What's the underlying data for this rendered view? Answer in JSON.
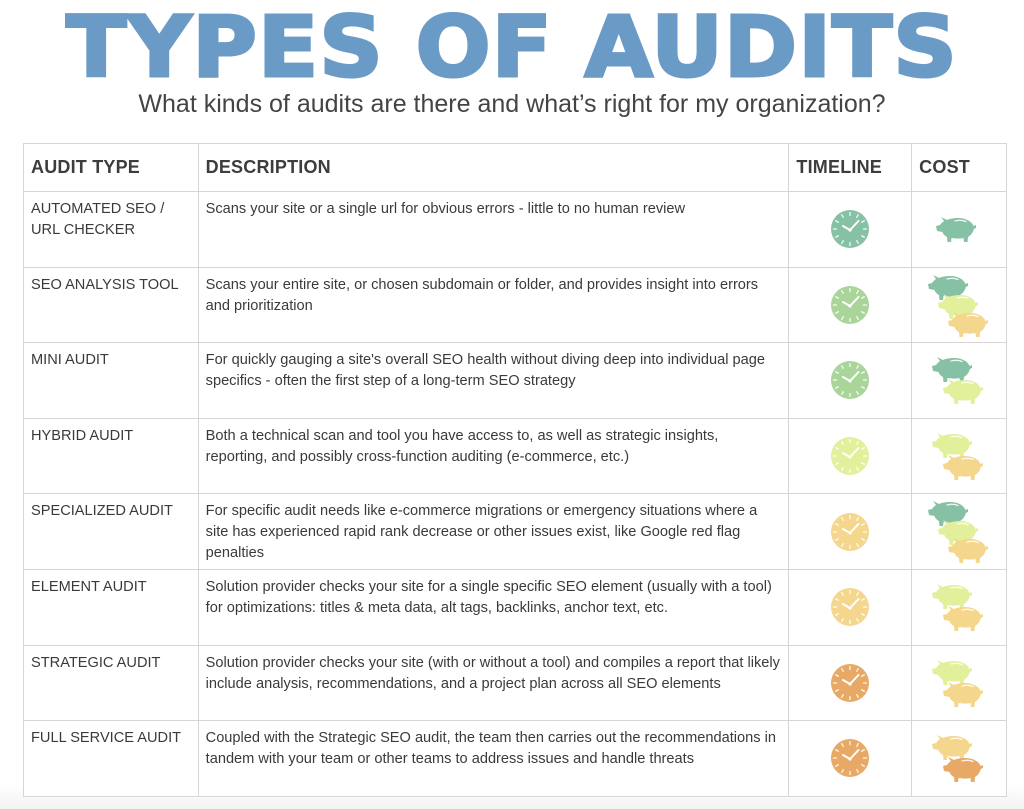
{
  "header": {
    "title": "TYPES OF AUDITS",
    "subtitle": "What kinds of audits are there and what’s right for my organization?"
  },
  "colors": {
    "title_blue": "#6a9bc7",
    "teal": "#86c1a5",
    "light_green": "#a9d49a",
    "lime": "#e2f09c",
    "yellow": "#f5d68d",
    "orange": "#e8a866",
    "border": "#d6d6d6",
    "text": "#3a3a3a"
  },
  "table": {
    "columns": [
      "AUDIT TYPE",
      "DESCRIPTION",
      "TIMELINE",
      "COST"
    ],
    "rows": [
      {
        "type": "AUTOMATED SEO / URL CHECKER",
        "description": "Scans your site or a single url for obvious errors - little to no human review",
        "timeline_icon": "clock-icon",
        "timeline_color": "#86c1a5",
        "cost_icons": [
          "#86c1a5"
        ]
      },
      {
        "type": "SEO ANALYSIS TOOL",
        "description": "Scans your entire site, or chosen subdomain or folder, and provides insight into errors and prioritization",
        "timeline_icon": "clock-icon",
        "timeline_color": "#a9d49a",
        "cost_icons": [
          "#86c1a5",
          "#e2f09c",
          "#f5d68d"
        ]
      },
      {
        "type": "MINI AUDIT",
        "description": "For quickly gauging a site's overall SEO health without diving deep into individual page specifics - often the first step of a long-term SEO strategy",
        "timeline_icon": "clock-icon",
        "timeline_color": "#a9d49a",
        "cost_icons": [
          "#86c1a5",
          "#e2f09c"
        ]
      },
      {
        "type": "HYBRID AUDIT",
        "description": "Both a technical scan and tool you have access to, as well as strategic insights, reporting, and possibly cross-function auditing (e-commerce, etc.)",
        "timeline_icon": "clock-icon",
        "timeline_color": "#e2f09c",
        "cost_icons": [
          "#e2f09c",
          "#f5d68d"
        ]
      },
      {
        "type": "SPECIALIZED AUDIT",
        "description": "For specific audit needs like e-commerce migrations or emergency situations where a site has experienced rapid rank decrease or other issues exist, like Google red flag penalties",
        "timeline_icon": "clock-icon",
        "timeline_color": "#f5d68d",
        "cost_icons": [
          "#86c1a5",
          "#e2f09c",
          "#f5d68d"
        ]
      },
      {
        "type": "ELEMENT AUDIT",
        "description": "Solution provider checks your site for a single specific SEO element (usually with a tool) for optimizations: titles & meta data, alt tags, backlinks, anchor text, etc.",
        "timeline_icon": "clock-icon",
        "timeline_color": "#f5d68d",
        "cost_icons": [
          "#e2f09c",
          "#f5d68d"
        ]
      },
      {
        "type": "STRATEGIC AUDIT",
        "description": "Solution provider checks your site (with or without a tool) and compiles a report that likely include analysis, recommendations, and a project plan across all SEO elements",
        "timeline_icon": "clock-icon",
        "timeline_color": "#e8a866",
        "cost_icons": [
          "#e2f09c",
          "#f5d68d"
        ]
      },
      {
        "type": "FULL SERVICE AUDIT",
        "description": "Coupled with the Strategic SEO audit, the team then carries out the recommendations in tandem with your team or other teams to address issues and handle threats",
        "timeline_icon": "clock-icon",
        "timeline_color": "#e8a866",
        "cost_icons": [
          "#f5d68d",
          "#e8a866"
        ]
      }
    ]
  }
}
